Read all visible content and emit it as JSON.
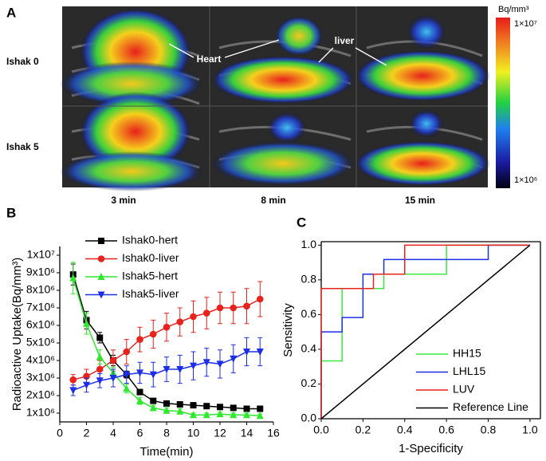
{
  "panel_a": {
    "label": "A",
    "rows": [
      "Ishak 0",
      "Ishak 5"
    ],
    "columns": [
      "3 min",
      "8 min",
      "15 min"
    ],
    "annotations": [
      "Heart",
      "liver"
    ],
    "colorbar": {
      "unit": "Bq/mm³",
      "max_label": "1×10⁷",
      "min_label": "1×10⁶"
    }
  },
  "chart_data": [
    {
      "type": "line",
      "panel_label": "B",
      "x_label": "Time(min)",
      "y_label": "Radioactive Uptake(Bq/mm³)",
      "x": [
        1,
        2,
        3,
        4,
        5,
        6,
        7,
        8,
        9,
        10,
        11,
        12,
        13,
        14,
        15
      ],
      "series": [
        {
          "name": "Ishak0-hert",
          "color": "#000000",
          "marker": "square",
          "values": [
            8900000,
            6300000,
            5300000,
            4000000,
            3200000,
            2200000,
            1700000,
            1550000,
            1500000,
            1450000,
            1400000,
            1350000,
            1300000,
            1250000,
            1250000
          ],
          "errors": [
            600000,
            500000,
            300000,
            300000,
            200000,
            150000,
            120000,
            100000,
            100000,
            100000,
            100000,
            100000,
            100000,
            100000,
            100000
          ]
        },
        {
          "name": "Ishak0-liver",
          "color": "#e8221c",
          "marker": "circle",
          "values": [
            2900000,
            3100000,
            3500000,
            4000000,
            4500000,
            5200000,
            5500000,
            5900000,
            6200000,
            6500000,
            6700000,
            7000000,
            7000000,
            7100000,
            7500000
          ],
          "errors": [
            300000,
            400000,
            500000,
            600000,
            700000,
            700000,
            800000,
            800000,
            800000,
            900000,
            900000,
            900000,
            900000,
            1000000,
            1000000
          ]
        },
        {
          "name": "Ishak5-hert",
          "color": "#2ee82e",
          "marker": "triangle",
          "values": [
            8700000,
            6100000,
            4200000,
            3300000,
            2400000,
            1700000,
            1300000,
            1150000,
            1100000,
            900000,
            900000,
            950000,
            900000,
            900000,
            850000
          ],
          "errors": [
            900000,
            600000,
            400000,
            300000,
            250000,
            200000,
            150000,
            150000,
            150000,
            100000,
            100000,
            100000,
            100000,
            100000,
            100000
          ]
        },
        {
          "name": "Ishak5-liver",
          "color": "#1c2ee8",
          "marker": "triangle-down",
          "values": [
            2300000,
            2600000,
            2850000,
            3000000,
            3200000,
            3300000,
            3200000,
            3500000,
            3500000,
            3700000,
            3900000,
            3800000,
            4100000,
            4500000,
            4500000
          ],
          "errors": [
            300000,
            400000,
            400000,
            500000,
            500000,
            600000,
            700000,
            700000,
            800000,
            800000,
            800000,
            800000,
            800000,
            800000,
            800000
          ]
        }
      ],
      "xlim": [
        0,
        16
      ],
      "xticks": [
        0,
        2,
        4,
        6,
        8,
        10,
        12,
        14,
        16
      ],
      "ylim": [
        500000,
        10500000
      ],
      "yticks": [
        {
          "value": 1000000,
          "label": "1x10⁶"
        },
        {
          "value": 2000000,
          "label": "2x10⁶"
        },
        {
          "value": 3000000,
          "label": "3x10⁶"
        },
        {
          "value": 4000000,
          "label": "4x10⁶"
        },
        {
          "value": 5000000,
          "label": "5x10⁶"
        },
        {
          "value": 6000000,
          "label": "6x10⁶"
        },
        {
          "value": 7000000,
          "label": "7x10⁶"
        },
        {
          "value": 8000000,
          "label": "8x10⁶"
        },
        {
          "value": 9000000,
          "label": "9x10⁶"
        },
        {
          "value": 10000000,
          "label": "1x10⁷"
        }
      ],
      "legend": "upper left",
      "frame": "axes"
    },
    {
      "type": "line",
      "panel_label": "C",
      "x_label": "1-Specificity",
      "y_label": "Sensitivity",
      "series": [
        {
          "name": "HH15",
          "color": "#3ee83e",
          "x": [
            0,
            0,
            0.1,
            0.1,
            0.3,
            0.3,
            0.6,
            0.6,
            1
          ],
          "values": [
            0,
            0.333,
            0.333,
            0.75,
            0.75,
            0.833,
            0.833,
            1,
            1
          ]
        },
        {
          "name": "LHL15",
          "color": "#1c2ee8",
          "x": [
            0,
            0,
            0.1,
            0.1,
            0.2,
            0.2,
            0.3,
            0.3,
            0.8,
            0.8,
            1
          ],
          "values": [
            0,
            0.5,
            0.5,
            0.583,
            0.583,
            0.833,
            0.833,
            0.917,
            0.917,
            1,
            1
          ]
        },
        {
          "name": "LUV",
          "color": "#e8221c",
          "x": [
            0,
            0,
            0.25,
            0.25,
            0.4,
            0.4,
            1
          ],
          "values": [
            0,
            0.75,
            0.75,
            0.833,
            0.833,
            1,
            1
          ]
        },
        {
          "name": "Reference Line",
          "color": "#000000",
          "x": [
            0,
            1
          ],
          "values": [
            0,
            1
          ]
        }
      ],
      "xlim": [
        0,
        1.05
      ],
      "xticks": [
        {
          "value": 0,
          "label": "0.0"
        },
        0.2,
        0.4,
        0.6,
        0.8,
        {
          "value": 1,
          "label": "1.0"
        }
      ],
      "ylim": [
        0,
        1.02
      ],
      "yticks": [
        {
          "value": 0,
          "label": "0.0"
        },
        0.2,
        0.4,
        0.6,
        0.8,
        {
          "value": 1,
          "label": "1.0"
        }
      ],
      "legend": "lower right",
      "frame": "box"
    }
  ]
}
